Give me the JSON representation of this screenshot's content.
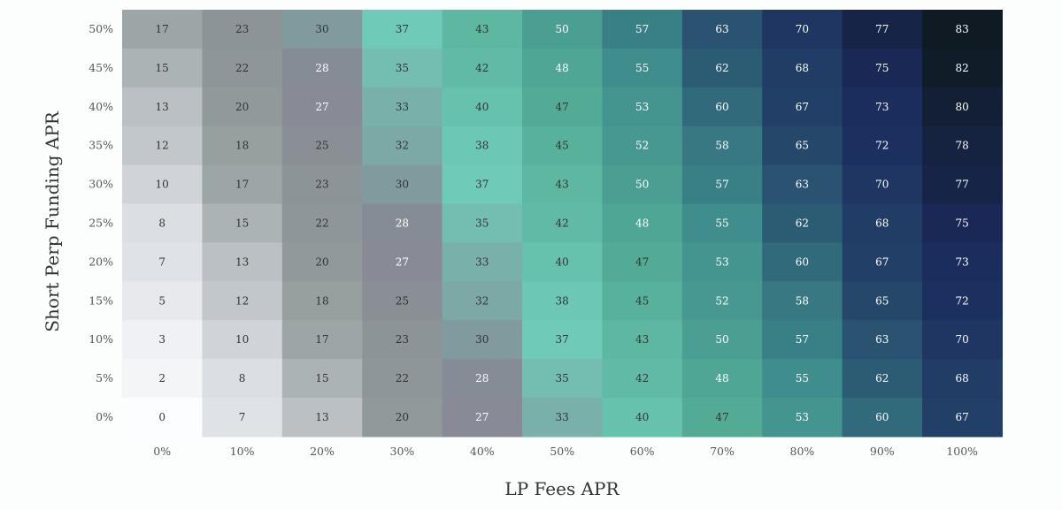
{
  "chart_data": {
    "type": "heatmap",
    "xlabel": "LP Fees APR",
    "ylabel": "Short Perp Funding APR",
    "x_categories": [
      "0%",
      "10%",
      "20%",
      "30%",
      "40%",
      "50%",
      "60%",
      "70%",
      "80%",
      "90%",
      "100%"
    ],
    "y_categories": [
      "50%",
      "45%",
      "40%",
      "35%",
      "30%",
      "25%",
      "20%",
      "15%",
      "10%",
      "5%",
      "0%"
    ],
    "values": [
      [
        17,
        23,
        30,
        37,
        43,
        50,
        57,
        63,
        70,
        77,
        83
      ],
      [
        15,
        22,
        28,
        35,
        42,
        48,
        55,
        62,
        68,
        75,
        82
      ],
      [
        13,
        20,
        27,
        33,
        40,
        47,
        53,
        60,
        67,
        73,
        80
      ],
      [
        12,
        18,
        25,
        32,
        38,
        45,
        52,
        58,
        65,
        72,
        78
      ],
      [
        10,
        17,
        23,
        30,
        37,
        43,
        50,
        57,
        63,
        70,
        77
      ],
      [
        8,
        15,
        22,
        28,
        35,
        42,
        48,
        55,
        62,
        68,
        75
      ],
      [
        7,
        13,
        20,
        27,
        33,
        40,
        47,
        53,
        60,
        67,
        73
      ],
      [
        5,
        12,
        18,
        25,
        32,
        38,
        45,
        52,
        58,
        65,
        72
      ],
      [
        3,
        10,
        17,
        23,
        30,
        37,
        43,
        50,
        57,
        63,
        70
      ],
      [
        2,
        8,
        15,
        22,
        28,
        35,
        42,
        48,
        55,
        62,
        68
      ],
      [
        0,
        7,
        13,
        20,
        27,
        33,
        40,
        47,
        53,
        60,
        67
      ]
    ],
    "value_range": [
      0,
      83
    ],
    "colorscale": [
      "#fcfdfe",
      "#d6d9df",
      "#939d9c",
      "#878a94",
      "#6fcbb8",
      "#55ad96",
      "#3e8c8c",
      "#25486b",
      "#1a2a5c",
      "#0f1a22"
    ]
  }
}
